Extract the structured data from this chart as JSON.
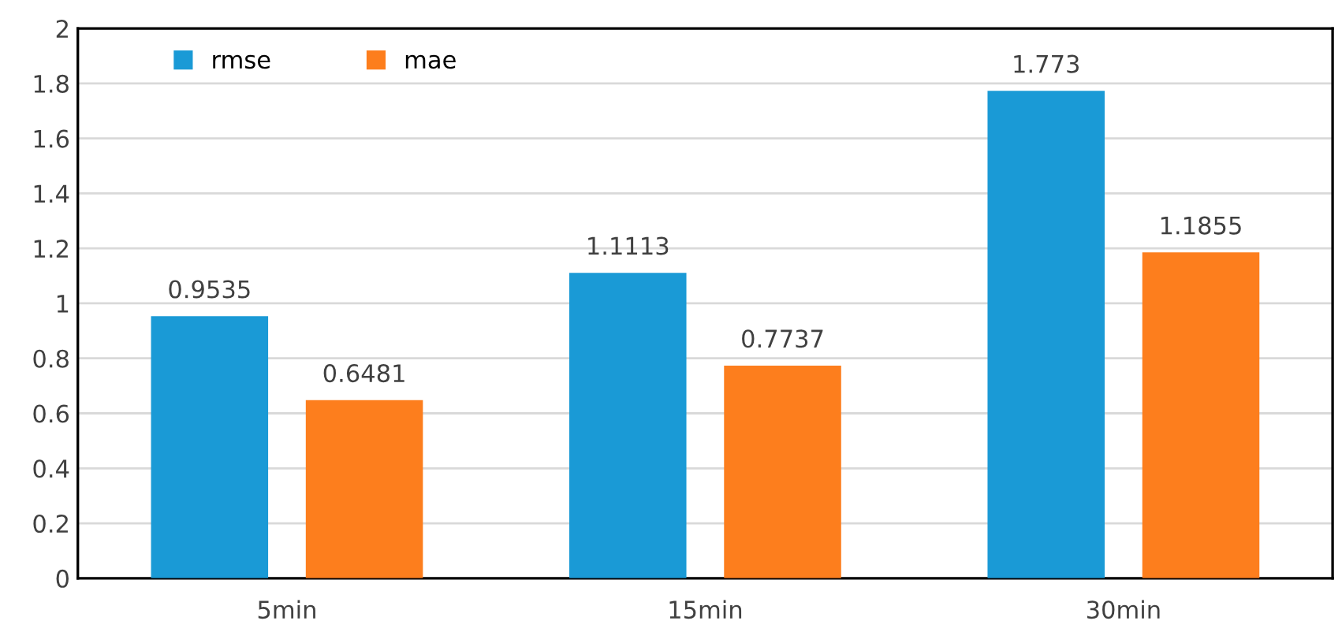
{
  "chart_data": {
    "type": "bar",
    "categories": [
      "5min",
      "15min",
      "30min"
    ],
    "series": [
      {
        "name": "rmse",
        "color": "#1a9ad6",
        "values": [
          0.9535,
          1.1113,
          1.773
        ]
      },
      {
        "name": "mae",
        "color": "#fd7e1d",
        "values": [
          0.6481,
          0.7737,
          1.1855
        ]
      }
    ],
    "ylim": [
      0,
      2
    ],
    "yticks": [
      0,
      0.2,
      0.4,
      0.6,
      0.8,
      1,
      1.2,
      1.4,
      1.6,
      1.8,
      2
    ],
    "grid": "y",
    "legend": "top left",
    "data_labels": true
  }
}
